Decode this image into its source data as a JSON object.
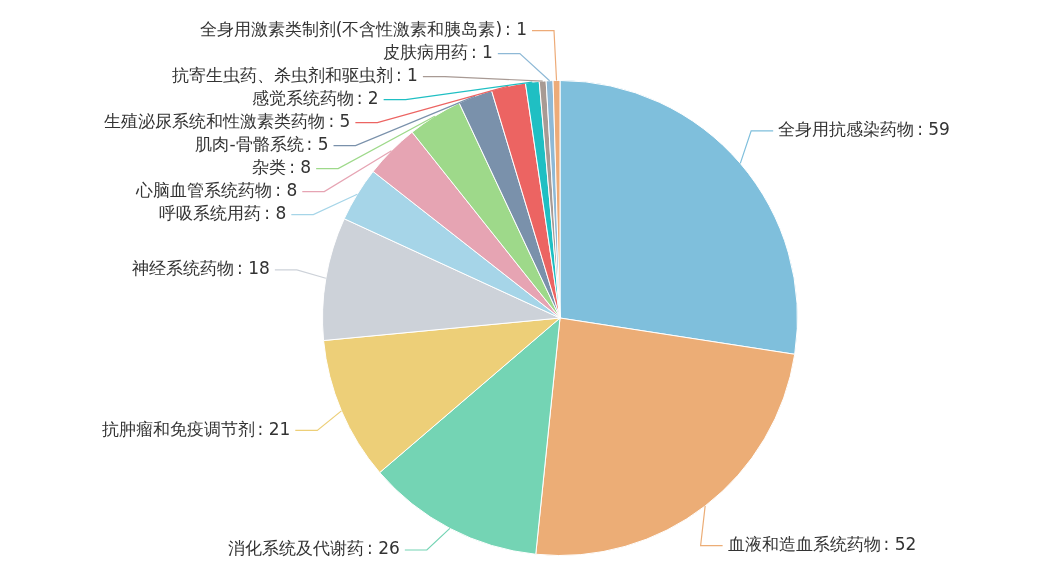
{
  "chart_data": {
    "type": "pie",
    "categories": [
      "全身用抗感染药物",
      "血液和造血系统药物",
      "消化系统及代谢药",
      "抗肿瘤和免疫调节剂",
      "神经系统药物",
      "呼吸系统用药",
      "心脑血管系统药物",
      "杂类",
      "肌肉-骨骼系统",
      "生殖泌尿系统和性激素类药物",
      "感觉系统药物",
      "抗寄生虫药、杀虫剂和驱虫剂",
      "皮肤病用药",
      "全身用激素类制剂(不含性激素和胰岛素)"
    ],
    "values": [
      59,
      52,
      26,
      21,
      18,
      8,
      8,
      8,
      5,
      5,
      2,
      1,
      1,
      1
    ],
    "value_labels": [
      ": 59",
      ": 52",
      ": 26",
      ": 21",
      ": 18",
      ": 8",
      ": 8",
      ": 8",
      ": 5",
      ": 5",
      ": 2",
      ": 1",
      ": 1",
      ": 1"
    ],
    "colors": [
      "#7fbfdc",
      "#ecad76",
      "#74d4b4",
      "#edcf78",
      "#cdd2d9",
      "#a6d5e8",
      "#e6a4b3",
      "#9ed98a",
      "#7a91ab",
      "#ec6462",
      "#1fbfc3",
      "#a89a94",
      "#8eb9d6",
      "#edab78"
    ],
    "legend": false
  }
}
